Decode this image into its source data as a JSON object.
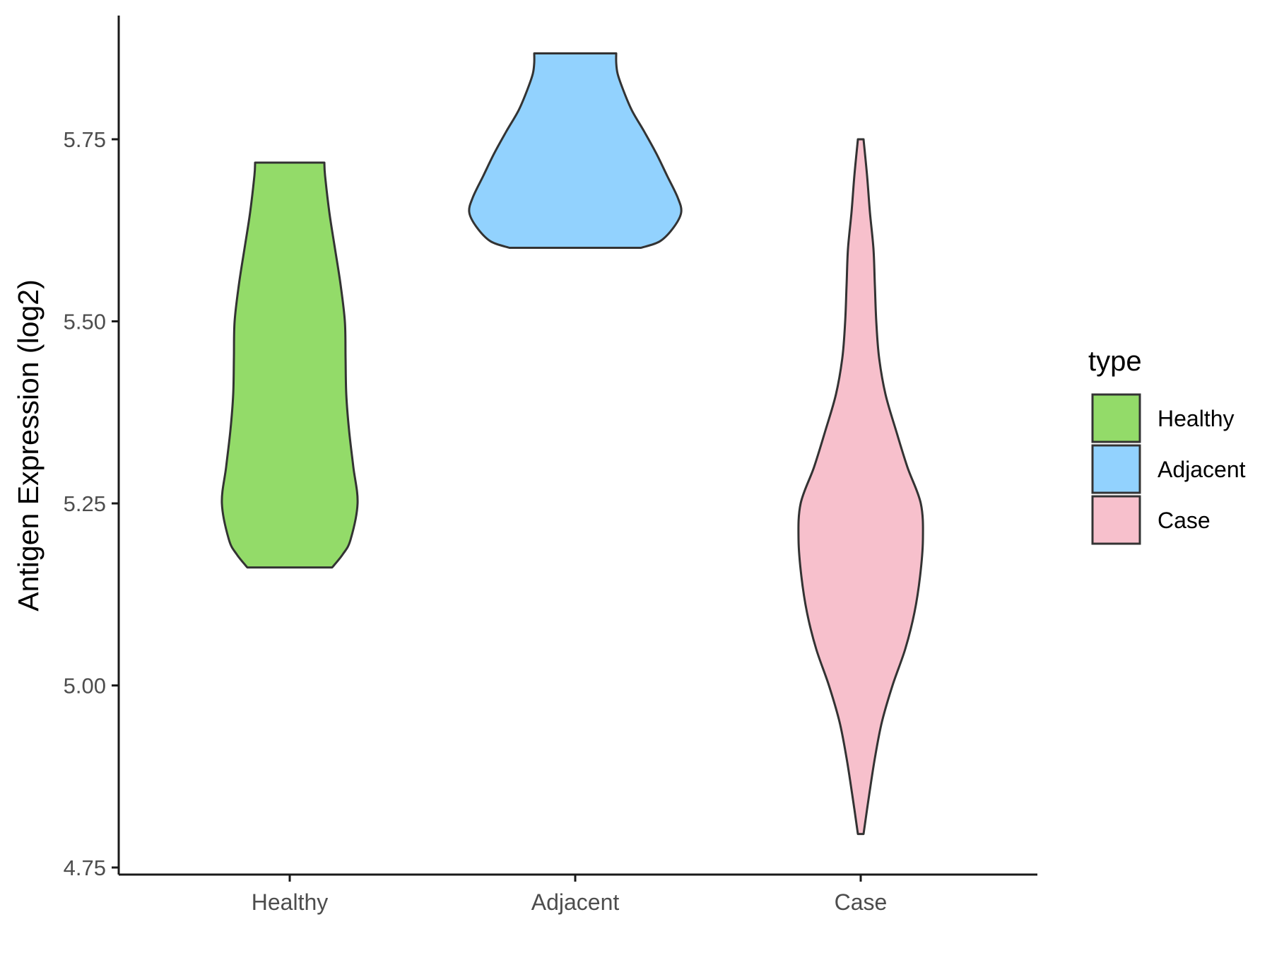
{
  "chart_data": {
    "type": "violin",
    "title": "",
    "xlabel": "",
    "ylabel": "Antigen Expression (log2)",
    "ylim": [
      4.74,
      5.93
    ],
    "y_ticks": [
      4.75,
      5.0,
      5.25,
      5.5,
      5.75
    ],
    "y_tick_labels": [
      "4.75",
      "5.00",
      "5.25",
      "5.50",
      "5.75"
    ],
    "categories": [
      "Healthy",
      "Adjacent",
      "Case"
    ],
    "legend": {
      "title": "type",
      "position": "right",
      "entries": [
        "Healthy",
        "Adjacent",
        "Case"
      ]
    },
    "grid": false,
    "series": [
      {
        "name": "Healthy",
        "color": "#93DB69",
        "min": 5.162,
        "max": 5.718,
        "profile": [
          [
            5.162,
            0.6
          ],
          [
            5.18,
            0.75
          ],
          [
            5.2,
            0.86
          ],
          [
            5.25,
            0.96
          ],
          [
            5.3,
            0.9
          ],
          [
            5.35,
            0.84
          ],
          [
            5.4,
            0.8
          ],
          [
            5.45,
            0.79
          ],
          [
            5.5,
            0.78
          ],
          [
            5.55,
            0.72
          ],
          [
            5.6,
            0.64
          ],
          [
            5.65,
            0.56
          ],
          [
            5.7,
            0.5
          ],
          [
            5.718,
            0.49
          ]
        ]
      },
      {
        "name": "Adjacent",
        "color": "#92D2FE",
        "min": 5.601,
        "max": 5.868,
        "profile": [
          [
            5.601,
            0.93
          ],
          [
            5.61,
            1.2
          ],
          [
            5.63,
            1.4
          ],
          [
            5.65,
            1.5
          ],
          [
            5.67,
            1.45
          ],
          [
            5.7,
            1.3
          ],
          [
            5.73,
            1.15
          ],
          [
            5.76,
            0.98
          ],
          [
            5.79,
            0.8
          ],
          [
            5.82,
            0.67
          ],
          [
            5.84,
            0.6
          ],
          [
            5.855,
            0.58
          ],
          [
            5.868,
            0.58
          ]
        ]
      },
      {
        "name": "Case",
        "color": "#F7C0CC",
        "min": 4.796,
        "max": 5.75,
        "profile": [
          [
            4.796,
            0.04
          ],
          [
            4.85,
            0.12
          ],
          [
            4.9,
            0.2
          ],
          [
            4.95,
            0.3
          ],
          [
            5.0,
            0.45
          ],
          [
            5.05,
            0.63
          ],
          [
            5.1,
            0.76
          ],
          [
            5.15,
            0.84
          ],
          [
            5.2,
            0.88
          ],
          [
            5.25,
            0.85
          ],
          [
            5.3,
            0.66
          ],
          [
            5.35,
            0.5
          ],
          [
            5.4,
            0.35
          ],
          [
            5.45,
            0.26
          ],
          [
            5.5,
            0.22
          ],
          [
            5.55,
            0.2
          ],
          [
            5.6,
            0.18
          ],
          [
            5.65,
            0.13
          ],
          [
            5.7,
            0.09
          ],
          [
            5.75,
            0.04
          ]
        ]
      }
    ]
  }
}
